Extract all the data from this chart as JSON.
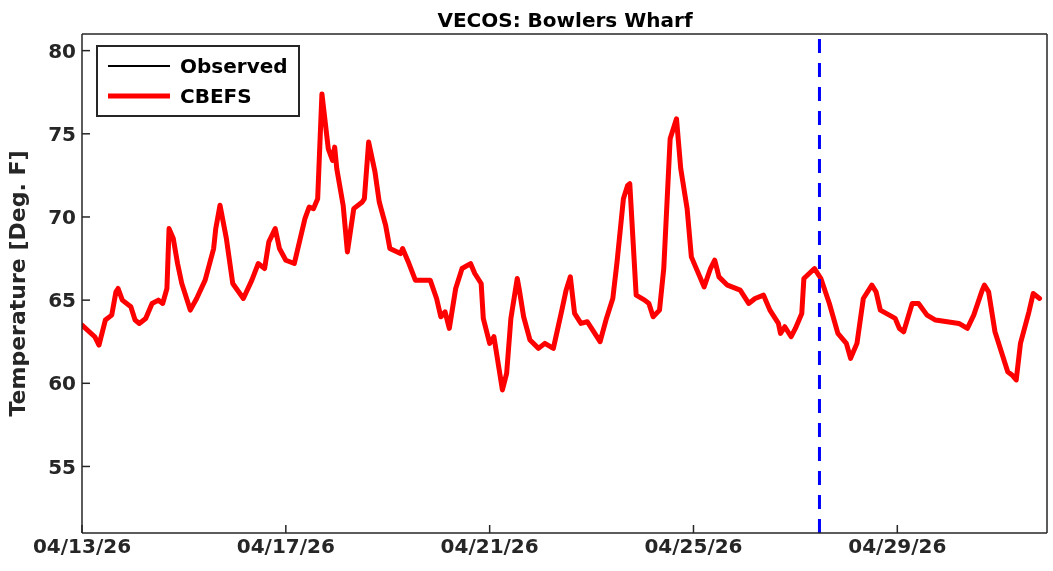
{
  "chart_data": {
    "type": "line",
    "title": "VECOS: Bowlers Wharf",
    "ylabel": "Temperature [Deg. F]",
    "xlim": [
      "--04-13T00:00",
      "--05-01T22:30"
    ],
    "xticks": [
      {
        "value": "--04-13",
        "label": "04/13/26"
      },
      {
        "value": "--04-17",
        "label": "04/17/26"
      },
      {
        "value": "--04-21",
        "label": "04/21/26"
      },
      {
        "value": "--04-25",
        "label": "04/25/26"
      },
      {
        "value": "--04-29",
        "label": "04/29/26"
      }
    ],
    "ylim": [
      51,
      81
    ],
    "yticks": [
      55,
      60,
      65,
      70,
      75,
      80
    ],
    "grid": false,
    "legend": "top left",
    "marker": "none",
    "line_style": "solid",
    "ref_lines": [
      {
        "axis": "x",
        "value": "--04-27T11:20",
        "color": "#0000ff",
        "line_style": "dashed"
      }
    ],
    "series": [
      {
        "name": "Observed",
        "color": "#000000"
      },
      {
        "name": "CBEFS",
        "color": "#ff0000",
        "x": [
          "--04-13T00:00",
          "--04-13T06:00",
          "--04-13T08:00",
          "--04-13T11:00",
          "--04-13T14:00",
          "--04-13T16:00",
          "--04-13T17:00",
          "--04-13T19:00",
          "--04-13T23:00",
          "--04-14T01:00",
          "--04-14T03:00",
          "--04-14T06:00",
          "--04-14T09:00",
          "--04-14T12:00",
          "--04-14T14:00",
          "--04-14T16:00",
          "--04-14T17:00",
          "--04-14T19:00",
          "--04-14T21:00",
          "--04-14T23:00",
          "--04-15T03:00",
          "--04-15T06:00",
          "--04-15T10:00",
          "--04-15T14:00",
          "--04-15T15:00",
          "--04-15T17:00",
          "--04-15T20:00",
          "--04-15T23:00",
          "--04-16T04:00",
          "--04-16T08:00",
          "--04-16T11:00",
          "--04-16T14:00",
          "--04-16T16:00",
          "--04-16T19:00",
          "--04-16T21:00",
          "--04-17T00:00",
          "--04-17T04:00",
          "--04-17T09:00",
          "--04-17T11:00",
          "--04-17T13:00",
          "--04-17T15:00",
          "--04-17T17:00",
          "--04-17T20:00",
          "--04-17T22:00",
          "--04-17T23:00",
          "--04-18T00:00",
          "--04-18T03:00",
          "--04-18T05:00",
          "--04-18T08:00",
          "--04-18T12:00",
          "--04-18T13:00",
          "--04-18T15:00",
          "--04-18T18:00",
          "--04-18T20:00",
          "--04-18T23:00",
          "--04-19T01:00",
          "--04-19T06:00",
          "--04-19T07:00",
          "--04-19T10:00",
          "--04-19T13:00",
          "--04-19T20:00",
          "--04-19T23:00",
          "--04-20T01:00",
          "--04-20T03:00",
          "--04-20T05:00",
          "--04-20T08:00",
          "--04-20T11:00",
          "--04-20T15:00",
          "--04-20T17:00",
          "--04-20T20:00",
          "--04-20T21:00",
          "--04-21T00:00",
          "--04-21T02:00",
          "--04-21T06:00",
          "--04-21T08:00",
          "--04-21T10:00",
          "--04-21T13:00",
          "--04-21T14:00",
          "--04-21T16:00",
          "--04-21T19:00",
          "--04-21T23:00",
          "--04-22T02:00",
          "--04-22T06:00",
          "--04-22T10:00",
          "--04-22T12:00",
          "--04-22T14:00",
          "--04-22T16:00",
          "--04-22T19:00",
          "--04-22T22:00",
          "--04-23T00:00",
          "--04-23T04:00",
          "--04-23T07:00",
          "--04-23T10:00",
          "--04-23T12:00",
          "--04-23T15:00",
          "--04-23T17:00",
          "--04-23T18:00",
          "--04-23T21:00",
          "--04-24T01:00",
          "--04-24T03:00",
          "--04-24T05:00",
          "--04-24T08:00",
          "--04-24T10:00",
          "--04-24T13:00",
          "--04-24T16:00",
          "--04-24T18:00",
          "--04-24T21:00",
          "--04-24T23:00",
          "--04-25T01:00",
          "--04-25T05:00",
          "--04-25T08:00",
          "--04-25T10:00",
          "--04-25T12:00",
          "--04-25T16:00",
          "--04-25T22:00",
          "--04-26T02:00",
          "--04-26T05:00",
          "--04-26T09:00",
          "--04-26T12:00",
          "--04-26T16:00",
          "--04-26T17:00",
          "--04-26T19:00",
          "--04-26T22:00",
          "--04-27T00:00",
          "--04-27T03:00",
          "--04-27T04:00",
          "--04-27T09:00",
          "--04-27T12:00",
          "--04-27T16:00",
          "--04-27T20:00",
          "--04-28T00:00",
          "--04-28T02:00",
          "--04-28T05:00",
          "--04-28T08:00",
          "--04-28T12:00",
          "--04-28T14:00",
          "--04-28T16:00",
          "--04-28T23:00",
          "--04-29T01:00",
          "--04-29T03:00",
          "--04-29T07:00",
          "--04-29T10:00",
          "--04-29T14:00",
          "--04-29T18:00",
          "--04-30T05:00",
          "--04-30T09:00",
          "--04-30T12:00",
          "--04-30T16:00",
          "--04-30T17:00",
          "--04-30T19:00",
          "--04-30T22:00",
          "--05-01T01:00",
          "--05-01T04:00",
          "--05-01T06:00",
          "--05-01T08:00",
          "--05-01T10:00",
          "--05-01T14:00",
          "--05-01T16:00",
          "--05-01T19:00"
        ],
        "values": [
          63.5,
          62.8,
          62.3,
          63.8,
          64.1,
          65.5,
          65.7,
          65.0,
          64.6,
          63.8,
          63.6,
          63.9,
          64.8,
          65.0,
          64.8,
          65.7,
          69.3,
          68.7,
          67.2,
          66.0,
          64.4,
          65.1,
          66.2,
          68.1,
          69.3,
          70.7,
          68.7,
          66.0,
          65.1,
          66.2,
          67.2,
          66.9,
          68.5,
          69.3,
          68.1,
          67.4,
          67.2,
          69.9,
          70.6,
          70.5,
          71.1,
          77.4,
          74.1,
          73.4,
          74.2,
          72.9,
          70.7,
          67.9,
          70.5,
          70.9,
          71.1,
          74.5,
          72.7,
          70.9,
          69.5,
          68.1,
          67.8,
          68.1,
          67.2,
          66.2,
          66.2,
          65.1,
          64.0,
          64.3,
          63.3,
          65.7,
          66.9,
          67.2,
          66.6,
          66.0,
          63.9,
          62.4,
          62.8,
          59.6,
          60.6,
          63.9,
          66.3,
          65.6,
          64.0,
          62.6,
          62.1,
          62.4,
          62.1,
          64.4,
          65.6,
          66.4,
          64.2,
          63.6,
          63.7,
          63.3,
          62.5,
          63.9,
          65.1,
          67.3,
          71.1,
          71.9,
          72.0,
          65.3,
          65.0,
          64.8,
          64.0,
          64.4,
          66.9,
          74.7,
          75.9,
          72.9,
          70.5,
          67.6,
          67.0,
          65.8,
          66.9,
          67.4,
          66.4,
          65.9,
          65.6,
          64.8,
          65.1,
          65.3,
          64.4,
          63.6,
          63.0,
          63.4,
          62.8,
          63.3,
          64.2,
          66.3,
          66.9,
          66.3,
          64.8,
          63.0,
          62.4,
          61.5,
          62.4,
          65.1,
          65.9,
          65.5,
          64.4,
          63.9,
          63.3,
          63.1,
          64.8,
          64.8,
          64.1,
          63.8,
          63.6,
          63.3,
          64.1,
          65.6,
          65.9,
          65.5,
          63.1,
          61.9,
          60.7,
          60.5,
          60.2,
          62.4,
          64.3,
          65.4,
          65.1
        ]
      }
    ]
  }
}
